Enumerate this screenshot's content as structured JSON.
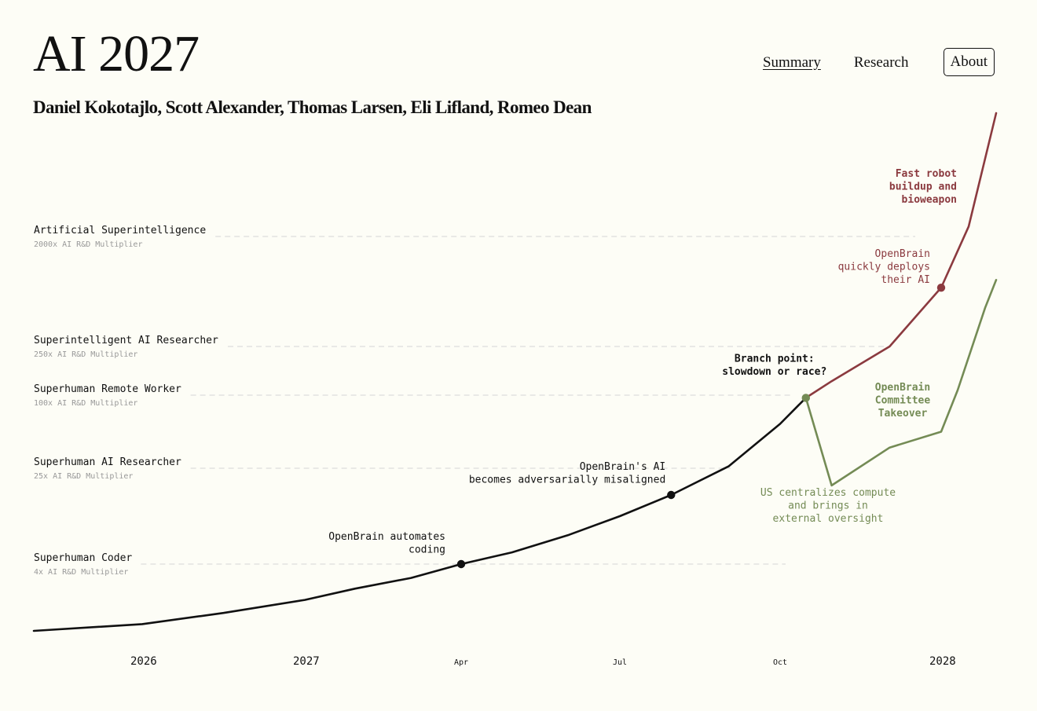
{
  "header": {
    "title": "AI 2027",
    "authors": "Daniel Kokotajlo, Scott Alexander, Thomas Larsen, Eli Lifland, Romeo Dean"
  },
  "nav": {
    "items": [
      {
        "label": "Summary",
        "state": "active"
      },
      {
        "label": "Research",
        "state": "default"
      },
      {
        "label": "About",
        "state": "boxed"
      }
    ]
  },
  "colors": {
    "background": "#fdfdf6",
    "baseline": "#111111",
    "race": "#8b3a3f",
    "slowdown": "#748b55",
    "gridline": "#dddddd",
    "muted": "#999999"
  },
  "chart_data": {
    "type": "line",
    "y_scale": "log",
    "y_unit": "AI R&D Multiplier",
    "ylim": [
      1,
      7000
    ],
    "x_ticks": [
      {
        "label": "2026",
        "x": 2026.0,
        "bold": true
      },
      {
        "label": "2027",
        "x": 2027.0,
        "bold": true
      },
      {
        "label": "Apr",
        "x": 2027.25,
        "bold": false
      },
      {
        "label": "Jul",
        "x": 2027.5,
        "bold": false
      },
      {
        "label": "Oct",
        "x": 2027.75,
        "bold": false
      },
      {
        "label": "2028",
        "x": 2028.0,
        "bold": true
      }
    ],
    "milestones": [
      {
        "name": "Superhuman Coder",
        "multiplier_label": "4x AI R&D Multiplier",
        "y": 4
      },
      {
        "name": "Superhuman AI Researcher",
        "multiplier_label": "25x AI R&D Multiplier",
        "y": 25
      },
      {
        "name": "Superhuman Remote Worker",
        "multiplier_label": "100x AI R&D Multiplier",
        "y": 100
      },
      {
        "name": "Superintelligent AI Researcher",
        "multiplier_label": "250x AI R&D Multiplier",
        "y": 250
      },
      {
        "name": "Artificial Superintelligence",
        "multiplier_label": "2000x AI R&D Multiplier",
        "y": 2000
      }
    ],
    "series": [
      {
        "key": "baseline",
        "points": [
          [
            2025.4,
            1.0
          ],
          [
            2026.0,
            1.15
          ],
          [
            2026.5,
            1.45
          ],
          [
            2027.0,
            1.9
          ],
          [
            2027.08,
            2.4
          ],
          [
            2027.17,
            3.0
          ],
          [
            2027.25,
            4.0
          ],
          [
            2027.33,
            5.0
          ],
          [
            2027.42,
            7.0
          ],
          [
            2027.5,
            10.0
          ],
          [
            2027.58,
            15.0
          ],
          [
            2027.67,
            26.0
          ],
          [
            2027.75,
            58.0
          ],
          [
            2027.79,
            95.0
          ]
        ]
      },
      {
        "key": "race",
        "points": [
          [
            2027.79,
            95.0
          ],
          [
            2027.83,
            130.0
          ],
          [
            2027.92,
            250.0
          ],
          [
            2028.0,
            760.0
          ],
          [
            2028.05,
            2200.0
          ],
          [
            2028.1,
            6500.0
          ]
        ]
      },
      {
        "key": "slowdown",
        "points": [
          [
            2027.79,
            95.0
          ],
          [
            2027.83,
            18.0
          ],
          [
            2027.92,
            37.0
          ],
          [
            2028.0,
            50.0
          ],
          [
            2028.03,
            110.0
          ],
          [
            2028.08,
            520.0
          ],
          [
            2028.1,
            880.0
          ]
        ]
      }
    ],
    "events": [
      {
        "label": "OpenBrain automates\ncoding",
        "x": 2027.25,
        "y": 4.0,
        "series": "baseline"
      },
      {
        "label": "OpenBrain's AI\nbecomes adversarially misaligned",
        "x": 2027.58,
        "y": 15.0,
        "series": "baseline"
      },
      {
        "label": "Branch point:\nslowdown or race?",
        "x": 2027.79,
        "y": 95.0,
        "series": "branch"
      },
      {
        "label": "OpenBrain\nquickly deploys\ntheir AI",
        "x": 2028.0,
        "y": 760.0,
        "series": "race"
      }
    ],
    "annotations": [
      {
        "label": "Fast robot\nbuildup and\nbioweapon",
        "series": "race"
      },
      {
        "label": "OpenBrain\nCommittee\nTakeover",
        "series": "slowdown"
      },
      {
        "label": "US centralizes compute\nand brings in\nexternal oversight",
        "series": "slowdown"
      }
    ]
  }
}
